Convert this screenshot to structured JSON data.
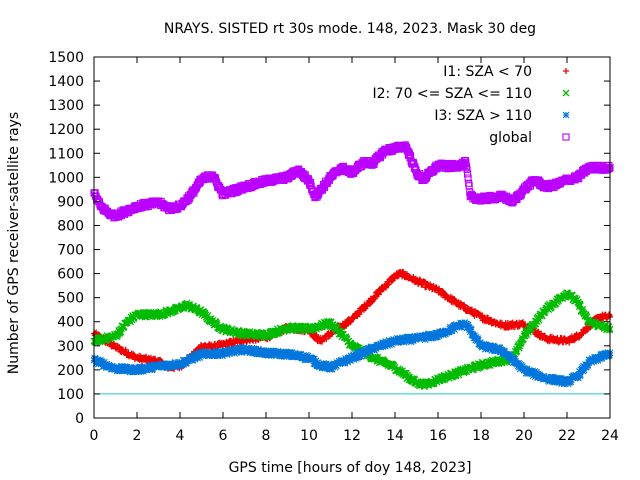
{
  "chart_data": {
    "type": "scatter",
    "title": "NRAYS. SISTED rt 30s mode. 148, 2023. Mask 30 deg",
    "xlabel": "GPS time [hours of doy 148, 2023]",
    "ylabel": "Number of GPS receiver-satellite rays",
    "xlim": [
      0,
      24
    ],
    "ylim": [
      0,
      1500
    ],
    "xticks": [
      "0",
      "2",
      "4",
      "6",
      "8",
      "10",
      "12",
      "14",
      "16",
      "18",
      "20",
      "22",
      "24"
    ],
    "yticks": [
      "0",
      "100",
      "200",
      "300",
      "400",
      "500",
      "600",
      "700",
      "800",
      "900",
      "1000",
      "1100",
      "1200",
      "1300",
      "1400",
      "1500"
    ],
    "grid": false,
    "legend_position": "top-right",
    "reference_line": {
      "y": 100,
      "color": "#22cccc"
    },
    "series": [
      {
        "name": "I1: SZA < 70",
        "marker": "+",
        "color": "#ee0000",
        "points": [
          [
            0,
            350
          ],
          [
            1,
            295
          ],
          [
            2,
            250
          ],
          [
            3,
            235
          ],
          [
            3.5,
            210
          ],
          [
            4,
            215
          ],
          [
            4.5,
            250
          ],
          [
            5,
            300
          ],
          [
            5.5,
            295
          ],
          [
            6,
            305
          ],
          [
            7,
            325
          ],
          [
            8,
            335
          ],
          [
            9,
            375
          ],
          [
            10,
            365
          ],
          [
            10.5,
            320
          ],
          [
            11,
            350
          ],
          [
            12,
            410
          ],
          [
            13,
            500
          ],
          [
            14,
            590
          ],
          [
            14.3,
            600
          ],
          [
            15,
            570
          ],
          [
            16,
            530
          ],
          [
            17,
            470
          ],
          [
            18,
            420
          ],
          [
            19,
            385
          ],
          [
            20,
            390
          ],
          [
            20.5,
            360
          ],
          [
            21,
            330
          ],
          [
            22,
            320
          ],
          [
            22.5,
            340
          ],
          [
            23,
            380
          ],
          [
            23.5,
            420
          ],
          [
            24,
            420
          ]
        ]
      },
      {
        "name": "I2: 70 <= SZA <= 110",
        "marker": "x",
        "color": "#00bb00",
        "points": [
          [
            0,
            320
          ],
          [
            1,
            340
          ],
          [
            1.5,
            395
          ],
          [
            2,
            430
          ],
          [
            3,
            430
          ],
          [
            4,
            455
          ],
          [
            4.3,
            470
          ],
          [
            5,
            440
          ],
          [
            5.5,
            400
          ],
          [
            6,
            370
          ],
          [
            7,
            350
          ],
          [
            8,
            345
          ],
          [
            9,
            375
          ],
          [
            10,
            370
          ],
          [
            11,
            395
          ],
          [
            11.5,
            350
          ],
          [
            12,
            300
          ],
          [
            13,
            250
          ],
          [
            14,
            210
          ],
          [
            15,
            145
          ],
          [
            15.5,
            140
          ],
          [
            16,
            160
          ],
          [
            17,
            190
          ],
          [
            18,
            220
          ],
          [
            19,
            240
          ],
          [
            19.5,
            250
          ],
          [
            20,
            340
          ],
          [
            21,
            450
          ],
          [
            22,
            520
          ],
          [
            22.5,
            480
          ],
          [
            23,
            400
          ],
          [
            24,
            370
          ]
        ]
      },
      {
        "name": "I3: SZA > 110",
        "marker": "*",
        "color": "#0077dd",
        "points": [
          [
            0,
            240
          ],
          [
            1,
            205
          ],
          [
            2,
            200
          ],
          [
            3,
            215
          ],
          [
            4,
            225
          ],
          [
            5,
            265
          ],
          [
            6,
            270
          ],
          [
            7,
            285
          ],
          [
            8,
            270
          ],
          [
            9,
            265
          ],
          [
            10,
            250
          ],
          [
            10.5,
            220
          ],
          [
            11,
            210
          ],
          [
            12,
            250
          ],
          [
            13,
            290
          ],
          [
            14,
            320
          ],
          [
            15,
            330
          ],
          [
            16,
            345
          ],
          [
            17,
            385
          ],
          [
            17.3,
            390
          ],
          [
            18,
            300
          ],
          [
            19,
            280
          ],
          [
            20,
            200
          ],
          [
            21,
            165
          ],
          [
            22,
            150
          ],
          [
            22.5,
            175
          ],
          [
            23,
            230
          ],
          [
            24,
            270
          ]
        ]
      },
      {
        "name": "global",
        "marker": "square",
        "color": "#bb00ff",
        "points": [
          [
            0,
            935
          ],
          [
            0.3,
            880
          ],
          [
            0.7,
            850
          ],
          [
            1,
            840
          ],
          [
            2,
            880
          ],
          [
            3,
            895
          ],
          [
            3.5,
            870
          ],
          [
            4,
            880
          ],
          [
            4.5,
            925
          ],
          [
            5,
            990
          ],
          [
            5.5,
            1010
          ],
          [
            6,
            930
          ],
          [
            7,
            960
          ],
          [
            8,
            985
          ],
          [
            9,
            1000
          ],
          [
            9.5,
            1030
          ],
          [
            10,
            985
          ],
          [
            10.3,
            920
          ],
          [
            11,
            1000
          ],
          [
            11.5,
            1040
          ],
          [
            12,
            1020
          ],
          [
            12.5,
            1060
          ],
          [
            13,
            1060
          ],
          [
            13.5,
            1110
          ],
          [
            14,
            1120
          ],
          [
            14.5,
            1130
          ],
          [
            15,
            1020
          ],
          [
            15.3,
            990
          ],
          [
            16,
            1050
          ],
          [
            16.5,
            1045
          ],
          [
            17,
            1050
          ],
          [
            17.3,
            1060
          ],
          [
            17.5,
            920
          ],
          [
            18,
            910
          ],
          [
            19,
            920
          ],
          [
            19.5,
            900
          ],
          [
            20,
            950
          ],
          [
            20.5,
            990
          ],
          [
            21,
            960
          ],
          [
            21.5,
            970
          ],
          [
            22,
            990
          ],
          [
            22.5,
            1000
          ],
          [
            23,
            1040
          ],
          [
            24,
            1040
          ]
        ]
      }
    ]
  }
}
